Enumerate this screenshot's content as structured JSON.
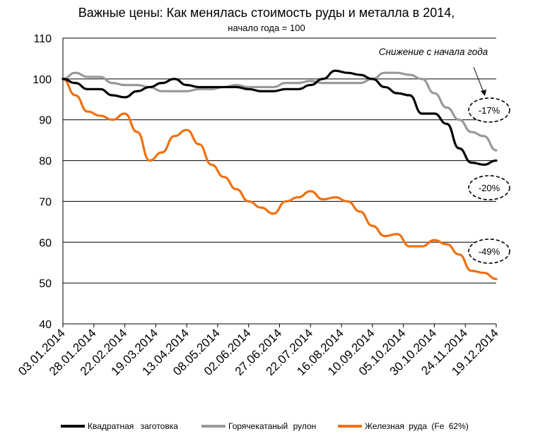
{
  "title": "Важные цены: Как менялась стоимость руды и металла в 2014,",
  "subtitle": "начало года = 100",
  "colors": {
    "series1": "#000000",
    "series2": "#999999",
    "series3": "#f07010"
  },
  "chart_data": {
    "type": "line",
    "ylim": [
      40,
      110
    ],
    "yticks": [
      40,
      50,
      60,
      70,
      80,
      90,
      100,
      110
    ],
    "xlabel": "",
    "ylabel": "",
    "xticks": [
      "03.01.2014",
      "28.01.2014",
      "22.02.2014",
      "19.03.2014",
      "13.04.2014",
      "08.05.2014",
      "02.06.2014",
      "27.06.2014",
      "22.07.2014",
      "16.08.2014",
      "10.09.2014",
      "05.10.2014",
      "30.10.2014",
      "24.11.2014",
      "19.12.2014"
    ],
    "grid": true,
    "legend_position": "bottom",
    "annotation": "Снижение с начала года",
    "callouts": [
      "-17%",
      "-20%",
      "-49%"
    ],
    "series": [
      {
        "name": "Квадратная заготовка",
        "x": [
          "03.01.2014",
          "13.01.2014",
          "23.01.2014",
          "02.02.2014",
          "12.02.2014",
          "22.02.2014",
          "04.03.2014",
          "14.03.2014",
          "24.03.2014",
          "03.04.2014",
          "13.04.2014",
          "23.04.2014",
          "03.05.2014",
          "13.05.2014",
          "23.05.2014",
          "02.06.2014",
          "12.06.2014",
          "22.06.2014",
          "02.07.2014",
          "12.07.2014",
          "22.07.2014",
          "01.08.2014",
          "11.08.2014",
          "21.08.2014",
          "31.08.2014",
          "10.09.2014",
          "20.09.2014",
          "30.09.2014",
          "10.10.2014",
          "20.10.2014",
          "30.10.2014",
          "09.11.2014",
          "19.11.2014",
          "29.11.2014",
          "09.12.2014",
          "19.12.2014"
        ],
        "values": [
          100,
          99,
          97.5,
          97.5,
          96,
          95.5,
          97,
          98,
          99,
          100,
          98.5,
          98,
          98,
          98,
          98,
          97.5,
          97,
          97,
          97.5,
          97.5,
          98.5,
          100,
          102,
          101.5,
          101,
          100,
          98,
          96.5,
          96,
          91.5,
          91.5,
          89,
          83,
          79.5,
          79,
          80
        ]
      },
      {
        "name": "Горячекатаный рулон",
        "x": [
          "03.01.2014",
          "13.01.2014",
          "23.01.2014",
          "02.02.2014",
          "12.02.2014",
          "22.02.2014",
          "04.03.2014",
          "14.03.2014",
          "24.03.2014",
          "03.04.2014",
          "13.04.2014",
          "23.04.2014",
          "03.05.2014",
          "13.05.2014",
          "23.05.2014",
          "02.06.2014",
          "12.06.2014",
          "22.06.2014",
          "02.07.2014",
          "12.07.2014",
          "22.07.2014",
          "01.08.2014",
          "11.08.2014",
          "21.08.2014",
          "31.08.2014",
          "10.09.2014",
          "20.09.2014",
          "30.09.2014",
          "10.10.2014",
          "20.10.2014",
          "30.10.2014",
          "09.11.2014",
          "19.11.2014",
          "29.11.2014",
          "09.12.2014",
          "19.12.2014"
        ],
        "values": [
          100,
          101.5,
          100.5,
          100.5,
          99,
          98.5,
          98.5,
          98,
          97,
          97,
          97,
          97.5,
          97.5,
          98,
          98.5,
          98,
          98,
          98,
          99,
          99,
          99.5,
          99,
          99,
          99,
          99,
          100,
          101.5,
          101.5,
          101,
          100,
          96.5,
          93,
          90,
          87,
          86,
          82.5
        ]
      },
      {
        "name": "Железная руда (Fe 62%)",
        "x": [
          "03.01.2014",
          "13.01.2014",
          "23.01.2014",
          "02.02.2014",
          "12.02.2014",
          "22.02.2014",
          "04.03.2014",
          "14.03.2014",
          "24.03.2014",
          "03.04.2014",
          "13.04.2014",
          "23.04.2014",
          "03.05.2014",
          "13.05.2014",
          "23.05.2014",
          "02.06.2014",
          "12.06.2014",
          "22.06.2014",
          "02.07.2014",
          "12.07.2014",
          "22.07.2014",
          "01.08.2014",
          "11.08.2014",
          "21.08.2014",
          "31.08.2014",
          "10.09.2014",
          "20.09.2014",
          "30.09.2014",
          "10.10.2014",
          "20.10.2014",
          "30.10.2014",
          "09.11.2014",
          "19.11.2014",
          "29.11.2014",
          "09.12.2014",
          "19.12.2014"
        ],
        "values": [
          100,
          96,
          92,
          91,
          90,
          91.5,
          87,
          80,
          82,
          86,
          87.5,
          84,
          79,
          76,
          73,
          70,
          68.5,
          67,
          70,
          71,
          72.5,
          70.5,
          71,
          70,
          67.5,
          64,
          61.5,
          62,
          59,
          59,
          60.5,
          59.5,
          57,
          53,
          52.5,
          51
        ]
      }
    ]
  }
}
